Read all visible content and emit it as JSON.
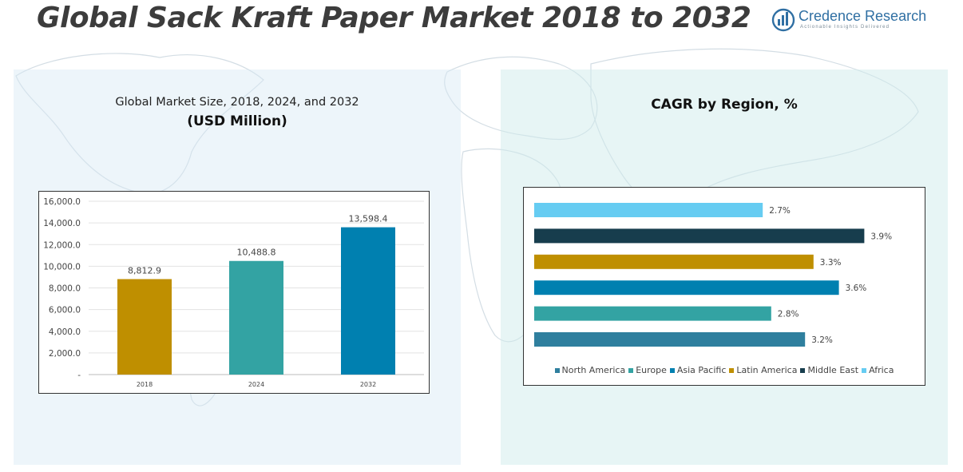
{
  "title": "Global Sack Kraft Paper Market 2018 to 2032",
  "logo": {
    "name": "Credence Research",
    "tagline": "Actionable Insights Delivered"
  },
  "colors": {
    "title": "#3c3c3c",
    "gold": "#bf8f00",
    "teal": "#33a3a3",
    "blue": "#0080b0",
    "navy": "#173d4d",
    "sky": "#66ccf2",
    "steel": "#2f7f9e"
  },
  "left_panel": {
    "title": "Global Market Size, 2018, 2024, and 2032",
    "subtitle": "(USD Million)"
  },
  "right_panel": {
    "title": "CAGR by Region, %"
  },
  "chart_data": [
    {
      "type": "bar",
      "categories": [
        "2018",
        "2024",
        "2032"
      ],
      "values": [
        8812.9,
        10488.8,
        13598.4
      ],
      "value_labels": [
        "8,812.9",
        "10,488.8",
        "13,598.4"
      ],
      "colors": [
        "#bf8f00",
        "#33a3a3",
        "#0080b0"
      ],
      "ylim": [
        0,
        16000
      ],
      "yticks": [
        "-",
        "2,000.0",
        "4,000.0",
        "6,000.0",
        "8,000.0",
        "10,000.0",
        "12,000.0",
        "14,000.0",
        "16,000.0"
      ],
      "title": "Global Market Size, 2018, 2024, and 2032",
      "ylabel": "(USD Million)",
      "grid": true
    },
    {
      "type": "bar",
      "orientation": "horizontal",
      "categories": [
        "North America",
        "Europe",
        "Asia Pacific",
        "Latin America",
        "Middle East",
        "Africa"
      ],
      "values": [
        3.2,
        2.8,
        3.6,
        3.3,
        3.9,
        2.7
      ],
      "value_labels": [
        "3.2%",
        "2.8%",
        "3.6%",
        "3.3%",
        "3.9%",
        "2.7%"
      ],
      "colors": [
        "#2f7f9e",
        "#33a3a3",
        "#0080b0",
        "#bf8f00",
        "#173d4d",
        "#66ccf2"
      ],
      "title": "CAGR by Region, %",
      "legend": "bottom",
      "xlim": [
        0,
        4
      ]
    }
  ]
}
